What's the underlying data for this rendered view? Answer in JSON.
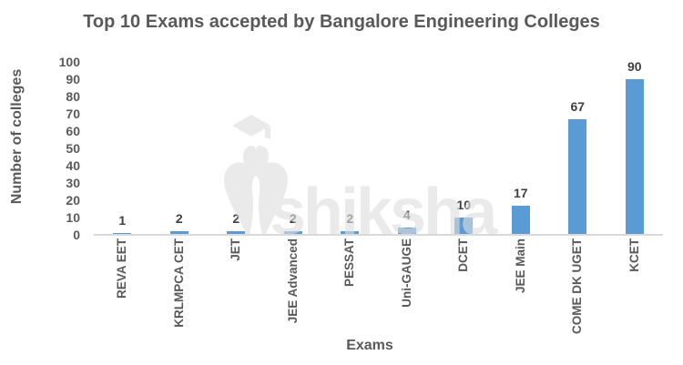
{
  "watermark": {
    "text": "shiksha",
    "logo": "graduation-cap-pen-nib",
    "color_hex": "#DEDEDE",
    "opacity": 0.62
  },
  "chart_data": {
    "type": "bar",
    "title": "Top 10 Exams accepted by Bangalore Engineering Colleges",
    "xlabel": "Exams",
    "ylabel": "Number of colleges",
    "categories": [
      "REVA EET",
      "KRLMPCA CET",
      "JET",
      "JEE Advanced",
      "PESSAT",
      "Uni-GAUGE",
      "DCET",
      "JEE Main",
      "COME DK UGET",
      "KCET"
    ],
    "values": [
      1,
      2,
      2,
      2,
      2,
      4,
      10,
      17,
      67,
      90
    ],
    "ylim": [
      0,
      100
    ],
    "ytick_step": 10,
    "yticks": [
      0,
      10,
      20,
      30,
      40,
      50,
      60,
      70,
      80,
      90,
      100
    ],
    "grid": false,
    "legend": false,
    "bar_labels_position": "outside-end",
    "x_label_rotation": -90,
    "colors": {
      "bar": "#5B9BD5",
      "axis_text": "#595959",
      "value_label_text": "#404040",
      "axis_line": "#D9D9D9"
    }
  }
}
